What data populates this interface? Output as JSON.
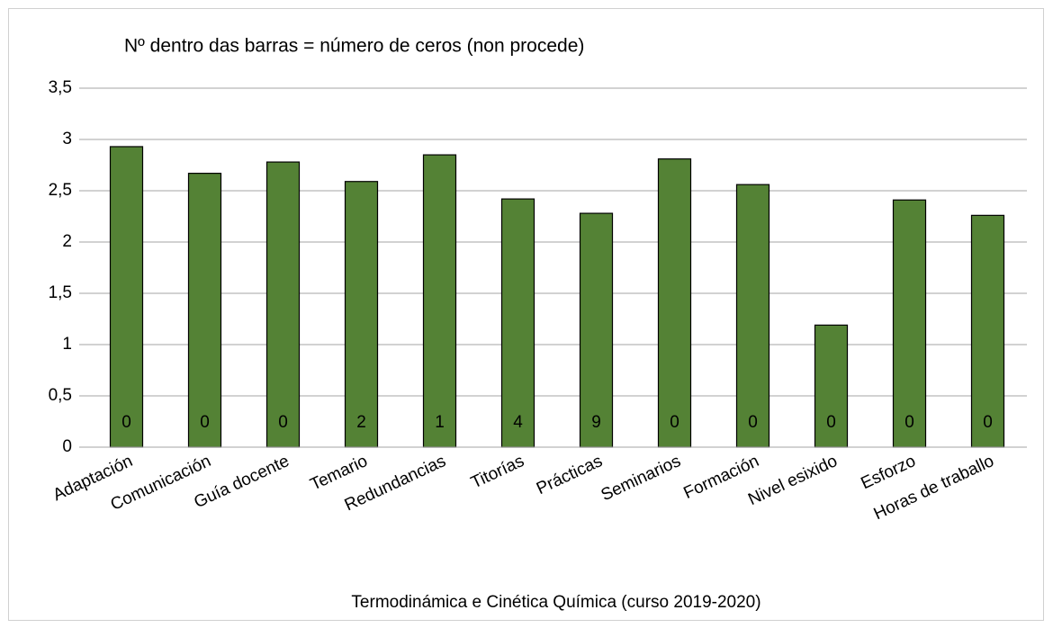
{
  "chart_data": {
    "type": "bar",
    "annotation": "Nº dentro das barras = número de ceros (non procede)",
    "title": "Termodinámica e Cinética Química (curso 2019-2020)",
    "categories": [
      "Adaptación",
      "Comunicación",
      "Guía docente",
      "Temario",
      "Redundancias",
      "Titorías",
      "Prácticas",
      "Seminarios",
      "Formación",
      "Nivel esixido",
      "Esforzo",
      "Horas de traballo"
    ],
    "values": [
      2.93,
      2.67,
      2.78,
      2.59,
      2.85,
      2.42,
      2.28,
      2.81,
      2.56,
      1.19,
      2.41,
      2.26
    ],
    "zero_counts": [
      0,
      0,
      0,
      2,
      1,
      4,
      9,
      0,
      0,
      0,
      0,
      0
    ],
    "color": "#548235",
    "ylim": [
      0,
      3.5
    ],
    "yticks": [
      0,
      {
        "value": 0.5,
        "label": "0,5"
      },
      1,
      {
        "value": 1.5,
        "label": "1,5"
      },
      2,
      {
        "value": 2.5,
        "label": "2,5"
      },
      3,
      {
        "value": 3.5,
        "label": "3,5"
      }
    ],
    "grid": true
  }
}
